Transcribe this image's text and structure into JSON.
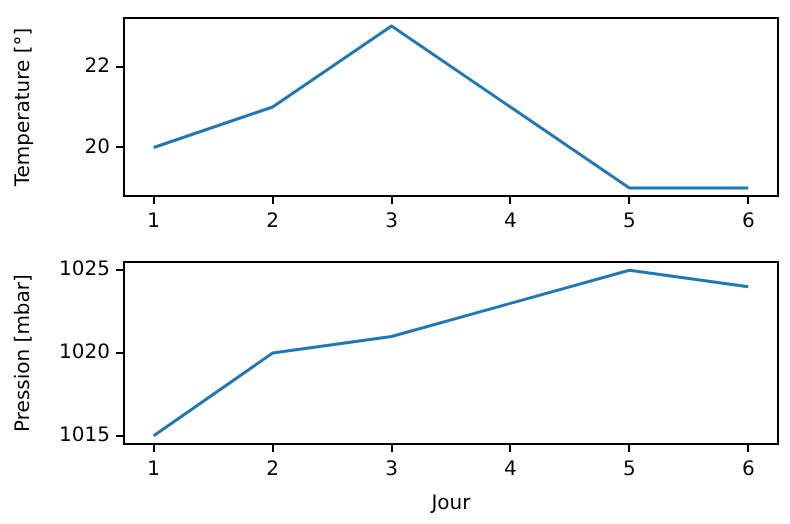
{
  "chart_data": [
    {
      "type": "line",
      "ylabel": "Temperature [°]",
      "x": [
        1,
        2,
        3,
        4,
        5,
        6
      ],
      "values": [
        20,
        21,
        23,
        21,
        19,
        19
      ],
      "color": "#1f77b4",
      "xlim": [
        0.75,
        6.25
      ],
      "xticks": [
        1,
        2,
        3,
        4,
        5,
        6
      ],
      "ylim": [
        18.8,
        23.2
      ],
      "yticks": [
        20,
        22
      ]
    },
    {
      "type": "line",
      "xlabel": "Jour",
      "ylabel": "Pression [mbar]",
      "x": [
        1,
        2,
        3,
        4,
        5,
        6
      ],
      "values": [
        1015,
        1020,
        1021,
        1023,
        1025,
        1024
      ],
      "color": "#1f77b4",
      "xlim": [
        0.75,
        6.25
      ],
      "xticks": [
        1,
        2,
        3,
        4,
        5,
        6
      ],
      "ylim": [
        1014.5,
        1025.5
      ],
      "yticks": [
        1015,
        1020,
        1025
      ]
    }
  ]
}
